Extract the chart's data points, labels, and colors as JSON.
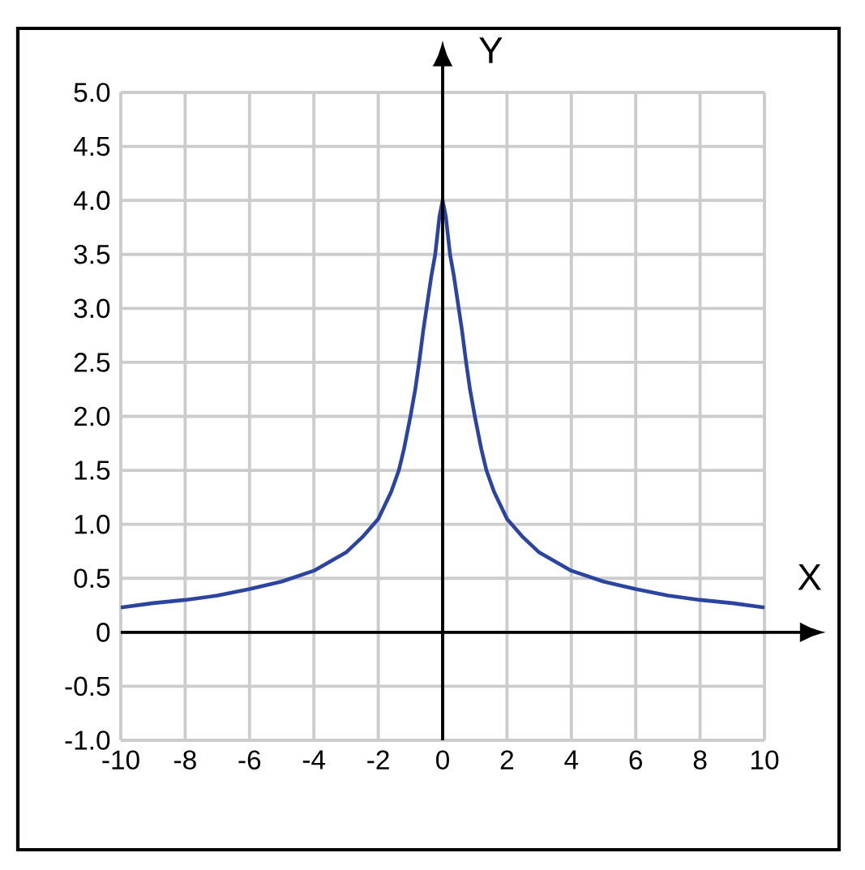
{
  "chart_data": {
    "type": "line",
    "xlabel": "X",
    "ylabel": "Y",
    "x": [
      -10,
      -9,
      -8,
      -7,
      -6,
      -5,
      -4,
      -3,
      -2.5,
      -2,
      -1.6,
      -1.36,
      -1.2,
      -1.0,
      -0.85,
      -0.73,
      -0.6,
      -0.5,
      -0.35,
      -0.23,
      -0.1,
      0,
      0.1,
      0.23,
      0.35,
      0.5,
      0.6,
      0.73,
      0.85,
      1.0,
      1.2,
      1.36,
      1.6,
      2,
      2.5,
      3,
      4,
      5,
      6,
      7,
      8,
      9,
      10
    ],
    "values": [
      0.23,
      0.27,
      0.3,
      0.34,
      0.4,
      0.47,
      0.57,
      0.74,
      0.88,
      1.05,
      1.3,
      1.5,
      1.7,
      2.0,
      2.25,
      2.5,
      2.8,
      3.0,
      3.3,
      3.5,
      3.85,
      4.0,
      3.85,
      3.5,
      3.3,
      3.0,
      2.8,
      2.5,
      2.25,
      2.0,
      1.7,
      1.5,
      1.3,
      1.05,
      0.88,
      0.74,
      0.57,
      0.47,
      0.4,
      0.34,
      0.3,
      0.27,
      0.23
    ],
    "color": "#2b44a0",
    "xlim": [
      -10,
      10
    ],
    "ylim": [
      -1,
      5
    ],
    "xticks": [
      -10,
      -8,
      -6,
      -4,
      -2,
      0,
      2,
      4,
      6,
      8,
      10
    ],
    "yticks": [
      {
        "value": -1,
        "label": "-1.0"
      },
      -0.5,
      0,
      0.5,
      {
        "value": 1,
        "label": "1.0"
      },
      1.5,
      {
        "value": 2,
        "label": "2.0"
      },
      2.5,
      {
        "value": 3,
        "label": "3.0"
      },
      3.5,
      {
        "value": 4,
        "label": "4.0"
      },
      4.5,
      {
        "value": 5,
        "label": "5.0"
      }
    ],
    "grid": true,
    "line_style": "solid",
    "marker": "none"
  }
}
